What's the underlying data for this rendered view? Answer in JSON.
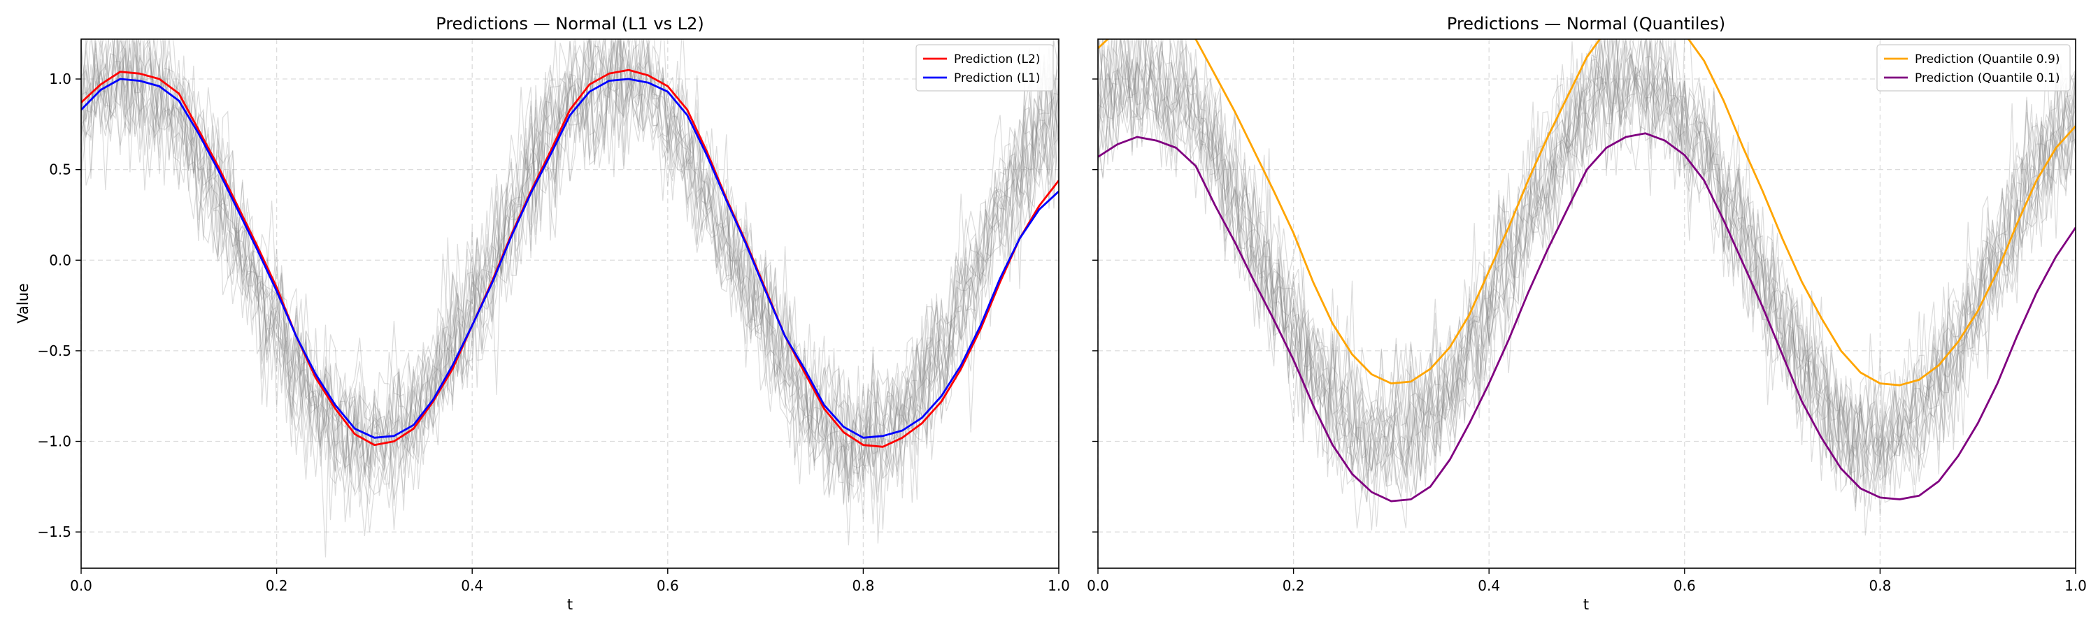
{
  "chart_data": [
    {
      "type": "line",
      "title": "Predictions — Normal (L1 vs L2)",
      "xlabel": "t",
      "ylabel": "Value",
      "xlim": [
        0,
        1
      ],
      "ylim": [
        -1.7,
        1.22
      ],
      "xticks": [
        0.0,
        0.2,
        0.4,
        0.6,
        0.8,
        1.0
      ],
      "xtick_labels": [
        "0.0",
        "0.2",
        "0.4",
        "0.6",
        "0.8",
        "1.0"
      ],
      "yticks": [
        1.0,
        0.5,
        0.0,
        -0.5,
        -1.0,
        -1.5
      ],
      "ytick_labels": [
        "1.0",
        "0.5",
        "0.0",
        "−0.5",
        "−1.0",
        "−1.5"
      ],
      "grid": true,
      "legend_position": "top-right",
      "background_samples": {
        "color": "#808080",
        "count": 20,
        "base": "sin(2π·(t/0.5) + 1.0)",
        "noise_std": 0.2
      },
      "series": [
        {
          "name": "Prediction (L2)",
          "color": "#ff0000",
          "x": [
            0.0,
            0.02,
            0.04,
            0.06,
            0.08,
            0.1,
            0.12,
            0.14,
            0.16,
            0.18,
            0.2,
            0.22,
            0.24,
            0.26,
            0.28,
            0.3,
            0.32,
            0.34,
            0.36,
            0.38,
            0.4,
            0.42,
            0.44,
            0.46,
            0.48,
            0.5,
            0.52,
            0.54,
            0.56,
            0.58,
            0.6,
            0.62,
            0.64,
            0.66,
            0.68,
            0.7,
            0.72,
            0.74,
            0.76,
            0.78,
            0.8,
            0.82,
            0.84,
            0.86,
            0.88,
            0.9,
            0.92,
            0.94,
            0.96,
            0.98,
            1.0
          ],
          "values": [
            0.87,
            0.97,
            1.04,
            1.03,
            1.0,
            0.92,
            0.72,
            0.52,
            0.3,
            0.08,
            -0.15,
            -0.42,
            -0.65,
            -0.82,
            -0.96,
            -1.02,
            -1.0,
            -0.93,
            -0.78,
            -0.6,
            -0.36,
            -0.12,
            0.14,
            0.38,
            0.6,
            0.83,
            0.97,
            1.03,
            1.05,
            1.02,
            0.96,
            0.83,
            0.6,
            0.34,
            0.1,
            -0.16,
            -0.42,
            -0.62,
            -0.82,
            -0.95,
            -1.02,
            -1.03,
            -0.98,
            -0.9,
            -0.78,
            -0.6,
            -0.38,
            -0.12,
            0.12,
            0.3,
            0.44
          ]
        },
        {
          "name": "Prediction (L1)",
          "color": "#0000ff",
          "x": [
            0.0,
            0.02,
            0.04,
            0.06,
            0.08,
            0.1,
            0.12,
            0.14,
            0.16,
            0.18,
            0.2,
            0.22,
            0.24,
            0.26,
            0.28,
            0.3,
            0.32,
            0.34,
            0.36,
            0.38,
            0.4,
            0.42,
            0.44,
            0.46,
            0.48,
            0.5,
            0.52,
            0.54,
            0.56,
            0.58,
            0.6,
            0.62,
            0.64,
            0.66,
            0.68,
            0.7,
            0.72,
            0.74,
            0.76,
            0.78,
            0.8,
            0.82,
            0.84,
            0.86,
            0.88,
            0.9,
            0.92,
            0.94,
            0.96,
            0.98,
            1.0
          ],
          "values": [
            0.83,
            0.94,
            1.0,
            0.99,
            0.96,
            0.88,
            0.7,
            0.5,
            0.28,
            0.06,
            -0.17,
            -0.42,
            -0.63,
            -0.8,
            -0.93,
            -0.98,
            -0.97,
            -0.91,
            -0.77,
            -0.58,
            -0.36,
            -0.13,
            0.13,
            0.37,
            0.58,
            0.8,
            0.93,
            0.99,
            1.0,
            0.98,
            0.93,
            0.8,
            0.58,
            0.33,
            0.09,
            -0.17,
            -0.42,
            -0.6,
            -0.8,
            -0.92,
            -0.98,
            -0.97,
            -0.94,
            -0.87,
            -0.75,
            -0.58,
            -0.36,
            -0.1,
            0.12,
            0.28,
            0.38
          ]
        }
      ]
    },
    {
      "type": "line",
      "title": "Predictions — Normal (Quantiles)",
      "xlabel": "t",
      "ylabel": "",
      "xlim": [
        0,
        1
      ],
      "ylim": [
        -1.7,
        1.22
      ],
      "xticks": [
        0.0,
        0.2,
        0.4,
        0.6,
        0.8,
        1.0
      ],
      "xtick_labels": [
        "0.0",
        "0.2",
        "0.4",
        "0.6",
        "0.8",
        "1.0"
      ],
      "yticks": [
        1.0,
        0.5,
        0.0,
        -0.5,
        -1.0,
        -1.5
      ],
      "ytick_labels": [
        "",
        "",
        "",
        "",
        "",
        ""
      ],
      "grid": true,
      "legend_position": "top-right",
      "background_samples": {
        "color": "#808080",
        "count": 20,
        "base": "sin(2π·(t/0.5) + 1.0)",
        "noise_std": 0.2
      },
      "series": [
        {
          "name": "Prediction (Quantile 0.9)",
          "color": "#ffa500",
          "x": [
            0.0,
            0.02,
            0.04,
            0.06,
            0.08,
            0.1,
            0.12,
            0.14,
            0.16,
            0.18,
            0.2,
            0.22,
            0.24,
            0.26,
            0.28,
            0.3,
            0.32,
            0.34,
            0.36,
            0.38,
            0.4,
            0.42,
            0.44,
            0.46,
            0.48,
            0.5,
            0.52,
            0.54,
            0.56,
            0.58,
            0.6,
            0.62,
            0.64,
            0.66,
            0.68,
            0.7,
            0.72,
            0.74,
            0.76,
            0.78,
            0.8,
            0.82,
            0.84,
            0.86,
            0.88,
            0.9,
            0.92,
            0.94,
            0.96,
            0.98,
            1.0
          ],
          "values": [
            1.17,
            1.27,
            1.33,
            1.33,
            1.3,
            1.22,
            1.02,
            0.82,
            0.6,
            0.38,
            0.15,
            -0.12,
            -0.35,
            -0.52,
            -0.63,
            -0.68,
            -0.67,
            -0.6,
            -0.48,
            -0.3,
            -0.06,
            0.18,
            0.44,
            0.68,
            0.9,
            1.12,
            1.27,
            1.33,
            1.35,
            1.32,
            1.25,
            1.1,
            0.88,
            0.62,
            0.38,
            0.12,
            -0.12,
            -0.32,
            -0.5,
            -0.62,
            -0.68,
            -0.69,
            -0.66,
            -0.58,
            -0.45,
            -0.28,
            -0.06,
            0.2,
            0.44,
            0.62,
            0.74
          ]
        },
        {
          "name": "Prediction (Quantile 0.1)",
          "color": "#800080",
          "x": [
            0.0,
            0.02,
            0.04,
            0.06,
            0.08,
            0.1,
            0.12,
            0.14,
            0.16,
            0.18,
            0.2,
            0.22,
            0.24,
            0.26,
            0.28,
            0.3,
            0.32,
            0.34,
            0.36,
            0.38,
            0.4,
            0.42,
            0.44,
            0.46,
            0.48,
            0.5,
            0.52,
            0.54,
            0.56,
            0.58,
            0.6,
            0.62,
            0.64,
            0.66,
            0.68,
            0.7,
            0.72,
            0.74,
            0.76,
            0.78,
            0.8,
            0.82,
            0.84,
            0.86,
            0.88,
            0.9,
            0.92,
            0.94,
            0.96,
            0.98,
            1.0
          ],
          "values": [
            0.57,
            0.64,
            0.68,
            0.66,
            0.62,
            0.52,
            0.3,
            0.1,
            -0.12,
            -0.33,
            -0.55,
            -0.8,
            -1.02,
            -1.18,
            -1.28,
            -1.33,
            -1.32,
            -1.25,
            -1.1,
            -0.9,
            -0.68,
            -0.44,
            -0.18,
            0.06,
            0.28,
            0.5,
            0.62,
            0.68,
            0.7,
            0.66,
            0.58,
            0.44,
            0.22,
            -0.02,
            -0.26,
            -0.52,
            -0.78,
            -0.98,
            -1.15,
            -1.26,
            -1.31,
            -1.32,
            -1.3,
            -1.22,
            -1.08,
            -0.9,
            -0.68,
            -0.42,
            -0.18,
            0.02,
            0.18
          ]
        }
      ]
    }
  ]
}
